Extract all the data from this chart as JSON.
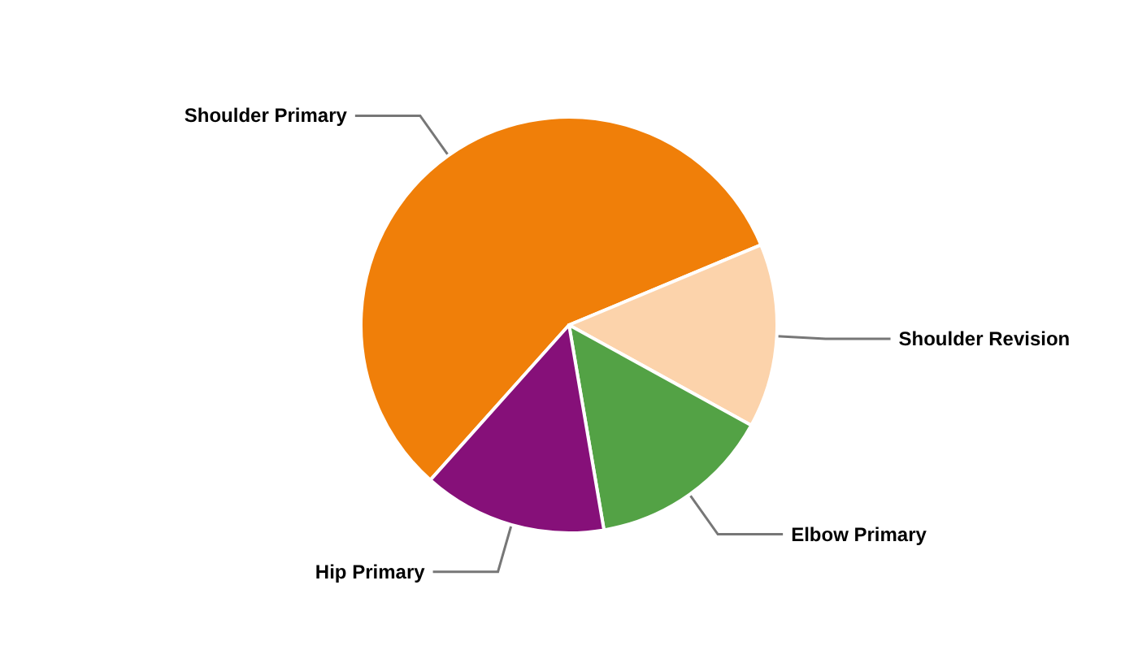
{
  "chart_data": {
    "type": "pie",
    "categories": [
      "Shoulder Primary",
      "Shoulder Revision",
      "Elbow Primary",
      "Hip Primary"
    ],
    "values": [
      57.1,
      14.3,
      14.3,
      14.3
    ],
    "colors": [
      "#f07f09",
      "#fcd3ab",
      "#53a245",
      "#861079"
    ],
    "legend": false
  }
}
